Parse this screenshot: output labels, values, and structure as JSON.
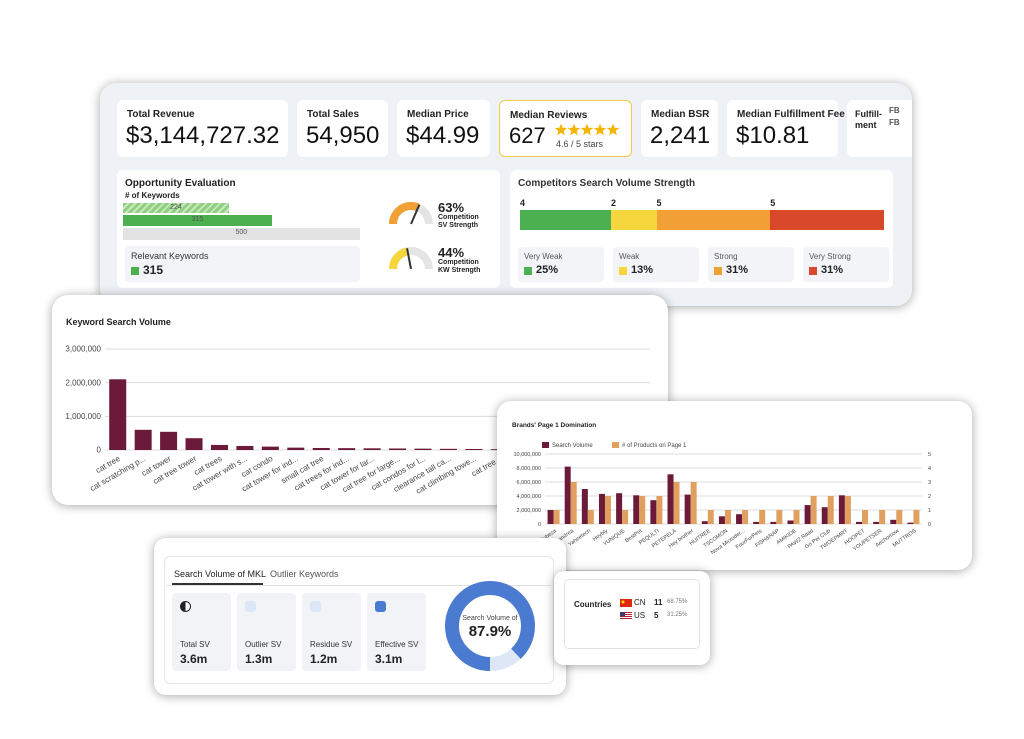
{
  "metrics": [
    {
      "label": "Total Revenue",
      "value": "$3,144,727.32"
    },
    {
      "label": "Total Sales",
      "value": "54,950"
    },
    {
      "label": "Median Price",
      "value": "$44.99"
    },
    {
      "label": "Median Reviews",
      "value": "627",
      "rating": "4.6 / 5 stars"
    },
    {
      "label": "Median BSR",
      "value": "2,241"
    },
    {
      "label": "Median Fulfillment Fee",
      "value": "$10.81"
    },
    {
      "label": "Fulfill-ment",
      "values": [
        "FB",
        "FB"
      ]
    }
  ],
  "opportunity": {
    "title": "Opportunity Evaluation",
    "subtitle": "# of Keywords",
    "bars": [
      {
        "value": 224,
        "color": "#8fcf7f",
        "pattern": "hatched"
      },
      {
        "value": 315,
        "color": "#4caf50"
      },
      {
        "value": 500,
        "color": "#e3e3e3"
      }
    ],
    "gauges": [
      {
        "value": 63,
        "value_label": "63%",
        "label": "Competition SV Strength",
        "color": "#f0a035"
      },
      {
        "value": 44,
        "value_label": "44%",
        "label": "Competition KW Strength",
        "color": "#f5d63d"
      }
    ],
    "relevant": {
      "label": "Relevant Keywords",
      "value": 315,
      "color": "#4caf50"
    }
  },
  "competitors": {
    "title": "Competitors Search Volume Strength",
    "segments": [
      {
        "count": 4,
        "name": "Very Weak",
        "share": 25,
        "share_label": "25%",
        "color": "#4caf50"
      },
      {
        "count": 2,
        "name": "Weak",
        "share": 13,
        "share_label": "13%",
        "color": "#f5d63d"
      },
      {
        "count": 5,
        "name": "Strong",
        "share": 31,
        "share_label": "31%",
        "color": "#f0a035"
      },
      {
        "count": 5,
        "name": "Very Strong",
        "share": 31,
        "share_label": "31%",
        "color": "#d9482b"
      }
    ]
  },
  "chart_data": [
    {
      "type": "bar",
      "title": "Keyword Search Volume",
      "categories": [
        "cat tree",
        "cat scratching p...",
        "cat tower",
        "cat tree tower",
        "cat trees",
        "cat tower with s...",
        "cat condo",
        "cat tower for ind...",
        "small cat tree",
        "cat trees for ind...",
        "cat tower for lar...",
        "cat tree for large...",
        "cat condos for l...",
        "clearance tall ca...",
        "cat climbing towe...",
        "cat tree..."
      ],
      "values": [
        2100000,
        600000,
        540000,
        350000,
        150000,
        120000,
        100000,
        70000,
        60000,
        55000,
        50000,
        45000,
        40000,
        35000,
        30000,
        25000
      ],
      "color": "#6b1a3a",
      "ylim": [
        0,
        3000000
      ],
      "yticks": [
        0,
        {
          "value": 1000000,
          "label": "1,000,000"
        },
        {
          "value": 2000000,
          "label": "2,000,000"
        },
        {
          "value": 3000000,
          "label": "3,000,000"
        }
      ],
      "grid": true
    },
    {
      "type": "grouped-bar",
      "title": "Brands' Page 1 Domination",
      "categories": [
        "Rubeza",
        "Feandrea",
        "Yaheetech",
        "Heybly",
        "YUNIQUE",
        "BestPet",
        "PEQULTI",
        "PETEPELA",
        "Hey brother",
        "HUITREE",
        "TSCOMON",
        "Nova Microder...",
        "FourFurPets",
        "FISH&NAP",
        "AMIKIDE",
        "PAWZ Road",
        "Go Pet Club",
        "TWOEPMRT",
        "HOOPET",
        "YOUPETSER",
        "Aechomow",
        "MUTTROS"
      ],
      "series": [
        {
          "name": "Search Volume",
          "color": "#6b1a3a",
          "values": [
            2000000,
            8200000,
            5000000,
            4300000,
            4400000,
            4100000,
            3400000,
            7100000,
            4200000,
            400000,
            1100000,
            1400000,
            300000,
            300000,
            500000,
            2700000,
            2400000,
            4100000,
            300000,
            300000,
            600000,
            200000
          ]
        },
        {
          "name": "# of Products on Page 1",
          "color": "#e0a060",
          "axis": "y2",
          "values": [
            1,
            3,
            1,
            2,
            1,
            2,
            2,
            3,
            3,
            1,
            1,
            1,
            1,
            1,
            1,
            2,
            2,
            2,
            1,
            1,
            1,
            1
          ]
        }
      ],
      "ylim": [
        0,
        10000000
      ],
      "yticks": [
        0,
        {
          "value": 2000000,
          "label": "2,000,000"
        },
        {
          "value": 4000000,
          "label": "4,000,000"
        },
        {
          "value": 6000000,
          "label": "6,000,000"
        },
        {
          "value": 8000000,
          "label": "8,000,000"
        },
        {
          "value": 10000000,
          "label": "10,000,000"
        }
      ],
      "y2lim": [
        0,
        5
      ],
      "y2ticks": [
        0,
        1,
        2,
        3,
        4,
        5
      ],
      "grid": true,
      "legend": "top"
    }
  ],
  "mkl": {
    "tabs": [
      "Search Volume of MKL",
      "Outlier Keywords"
    ],
    "cards": [
      {
        "label": "Total SV",
        "value": "3.6m"
      },
      {
        "label": "Outlier SV",
        "value": "1.3m"
      },
      {
        "label": "Residue SV",
        "value": "1.2m"
      },
      {
        "label": "Effective SV",
        "value": "3.1m"
      }
    ],
    "donut": {
      "label": "Search Volume of",
      "value": 87.9,
      "value_label": "87.9%",
      "color": "#4a7bd0"
    }
  },
  "countries": {
    "title": "Countries",
    "rows": [
      {
        "code": "CN",
        "count": 11,
        "share": "68.75%"
      },
      {
        "code": "US",
        "count": 5,
        "share": "31.25%"
      }
    ]
  }
}
